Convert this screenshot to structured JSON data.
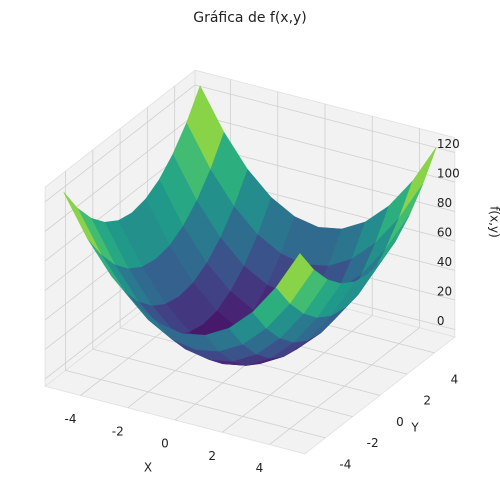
{
  "chart_data": {
    "type": "surface",
    "title": "Gráfica de f(x,y)",
    "xlabel": "X",
    "ylabel": "Y",
    "zlabel": "f(x,y)",
    "colormap": "viridis",
    "x": [
      -5,
      -4,
      -3,
      -2,
      -1,
      0,
      1,
      2,
      3,
      4,
      5
    ],
    "y": [
      -5,
      -4,
      -3,
      -2,
      -1,
      0,
      1,
      2,
      3,
      4,
      5
    ],
    "z": [
      [
        125,
        98,
        77,
        62,
        53,
        50,
        53,
        62,
        77,
        98,
        125
      ],
      [
        107,
        80,
        59,
        44,
        35,
        32,
        35,
        44,
        59,
        80,
        107
      ],
      [
        93,
        66,
        45,
        30,
        21,
        18,
        21,
        30,
        45,
        66,
        93
      ],
      [
        83,
        56,
        35,
        20,
        11,
        8,
        11,
        20,
        35,
        56,
        83
      ],
      [
        77,
        50,
        29,
        14,
        5,
        2,
        5,
        14,
        29,
        50,
        77
      ],
      [
        75,
        48,
        27,
        12,
        3,
        0,
        3,
        12,
        27,
        48,
        75
      ],
      [
        77,
        50,
        29,
        14,
        5,
        2,
        5,
        14,
        29,
        50,
        77
      ],
      [
        83,
        56,
        35,
        20,
        11,
        8,
        11,
        20,
        35,
        56,
        83
      ],
      [
        93,
        66,
        45,
        30,
        21,
        18,
        21,
        30,
        45,
        66,
        93
      ],
      [
        107,
        80,
        59,
        44,
        35,
        32,
        35,
        44,
        59,
        80,
        107
      ],
      [
        125,
        98,
        77,
        62,
        53,
        50,
        53,
        62,
        77,
        98,
        125
      ]
    ],
    "xlim": [
      -5.5,
      5.5
    ],
    "ylim": [
      -5.5,
      5.5
    ],
    "zlim": [
      -5,
      130
    ],
    "xticks": [
      -4,
      -2,
      0,
      2,
      4
    ],
    "yticks": [
      -4,
      -2,
      0,
      2,
      4
    ],
    "zticks": [
      0,
      20,
      40,
      60,
      80,
      100,
      120
    ],
    "grid": true
  }
}
